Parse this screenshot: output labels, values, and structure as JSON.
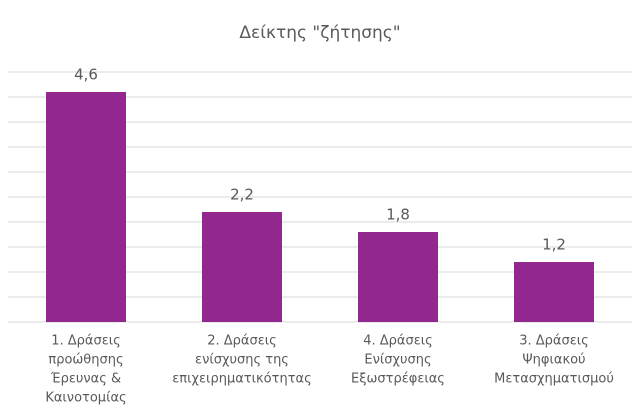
{
  "chart_data": {
    "type": "bar",
    "title": "Δείκτης \"ζήτησης\"",
    "categories": [
      [
        "1. Δράσεις",
        "προώθησης",
        "Έρευνας &",
        "Καινοτομίας"
      ],
      [
        "2. Δράσεις",
        "ενίσχυσης της",
        "επιχειρηματικότητας"
      ],
      [
        "4. Δράσεις",
        "Ενίσχυσης",
        "Εξωστρέφειας"
      ],
      [
        "3. Δράσεις",
        "Ψηφιακού",
        "Μετασχηματισμού"
      ]
    ],
    "values": [
      4.6,
      2.2,
      1.8,
      1.2
    ],
    "value_labels": [
      "4,6",
      "2,2",
      "1,8",
      "1,2"
    ],
    "color": "#92278f",
    "ylim": [
      0,
      5
    ],
    "yticks": [
      0,
      0.5,
      1,
      1.5,
      2,
      2.5,
      3,
      3.5,
      4,
      4.5,
      5
    ],
    "grid": true
  }
}
